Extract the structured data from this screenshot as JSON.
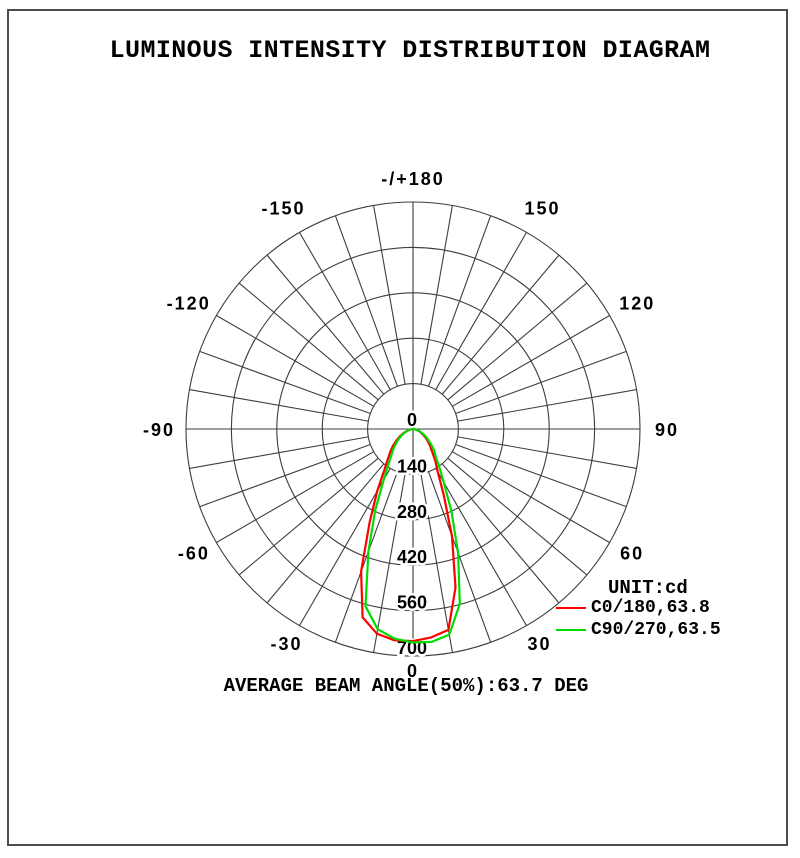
{
  "page": {
    "title": "LUMINOUS INTENSITY DISTRIBUTION DIAGRAM",
    "footer": "AVERAGE BEAM ANGLE(50%):63.7 DEG"
  },
  "legend": {
    "unit_label": "UNIT:cd",
    "entries": [
      {
        "label": "C0/180,63.8",
        "color": "#fe0000"
      },
      {
        "label": "C90/270,63.5",
        "color": "#00dc00"
      }
    ]
  },
  "colors": {
    "grid": "#3d3d3d",
    "text": "#000000",
    "frame": "#4d4d4d",
    "background": "#ffffff"
  },
  "chart_data": {
    "type": "line",
    "subtype": "polar-intensity-distribution",
    "unit": "cd",
    "title": "LUMINOUS INTENSITY DISTRIBUTION DIAGRAM",
    "average_beam_angle_50pct_deg": 63.7,
    "rmax": 700,
    "radial_ticks": [
      0,
      140,
      280,
      420,
      560,
      700
    ],
    "angle_step_deg": 10,
    "angle_label_step_deg": 30,
    "angle_labels_deg": [
      -150,
      -120,
      -90,
      -60,
      -30,
      0,
      30,
      60,
      90,
      120,
      150
    ],
    "top_label": "-/+180",
    "grid": true,
    "legend_position": "right-bottom",
    "series": [
      {
        "name": "C0/180",
        "beam_angle_50pct_deg": 63.8,
        "color": "#fe0000",
        "points": [
          [
            -90,
            0
          ],
          [
            -85,
            3
          ],
          [
            -80,
            8
          ],
          [
            -75,
            15
          ],
          [
            -70,
            24
          ],
          [
            -65,
            35
          ],
          [
            -60,
            48
          ],
          [
            -55,
            63
          ],
          [
            -50,
            81
          ],
          [
            -45,
            99
          ],
          [
            -40,
            121
          ],
          [
            -35,
            153
          ],
          [
            -30,
            220
          ],
          [
            -25,
            316
          ],
          [
            -20,
            468
          ],
          [
            -15,
            601
          ],
          [
            -10,
            641
          ],
          [
            -5,
            654
          ],
          [
            0,
            654
          ],
          [
            5,
            645
          ],
          [
            10,
            629
          ],
          [
            15,
            506
          ],
          [
            20,
            352
          ],
          [
            25,
            224
          ],
          [
            30,
            153
          ],
          [
            35,
            120
          ],
          [
            40,
            92
          ],
          [
            45,
            75
          ],
          [
            50,
            60
          ],
          [
            55,
            48
          ],
          [
            60,
            37
          ],
          [
            65,
            28
          ],
          [
            70,
            20
          ],
          [
            75,
            13
          ],
          [
            80,
            8
          ],
          [
            85,
            3
          ],
          [
            90,
            0
          ]
        ]
      },
      {
        "name": "C90/270",
        "beam_angle_50pct_deg": 63.5,
        "color": "#00dc00",
        "points": [
          [
            -90,
            0
          ],
          [
            -85,
            3
          ],
          [
            -80,
            7
          ],
          [
            -75,
            13
          ],
          [
            -70,
            21
          ],
          [
            -65,
            30
          ],
          [
            -60,
            41
          ],
          [
            -55,
            54
          ],
          [
            -50,
            68
          ],
          [
            -45,
            85
          ],
          [
            -40,
            102
          ],
          [
            -35,
            131
          ],
          [
            -30,
            181
          ],
          [
            -25,
            275
          ],
          [
            -20,
            402
          ],
          [
            -15,
            566
          ],
          [
            -10,
            627
          ],
          [
            -5,
            649
          ],
          [
            0,
            658
          ],
          [
            5,
            659
          ],
          [
            10,
            644
          ],
          [
            15,
            558
          ],
          [
            20,
            407
          ],
          [
            25,
            281
          ],
          [
            30,
            190
          ],
          [
            35,
            141
          ],
          [
            40,
            108
          ],
          [
            45,
            91
          ],
          [
            50,
            72
          ],
          [
            55,
            57
          ],
          [
            60,
            44
          ],
          [
            65,
            33
          ],
          [
            70,
            24
          ],
          [
            75,
            16
          ],
          [
            80,
            9
          ],
          [
            85,
            4
          ],
          [
            90,
            0
          ]
        ]
      }
    ]
  }
}
